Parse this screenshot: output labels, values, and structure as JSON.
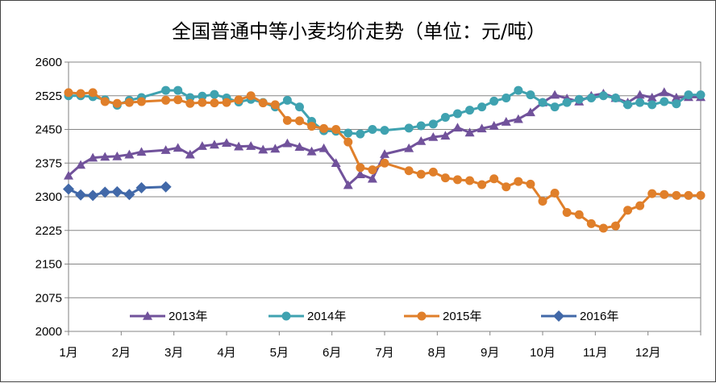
{
  "chart_data": {
    "type": "line",
    "title": "全国普通中等小麦均价走势（单位：元/吨）",
    "ylim": [
      2000,
      2600
    ],
    "y_ticks": [
      2000,
      2075,
      2150,
      2225,
      2300,
      2375,
      2450,
      2525,
      2600
    ],
    "x_ticks": [
      "1月",
      "2月",
      "3月",
      "4月",
      "5月",
      "6月",
      "7月",
      "8月",
      "9月",
      "10月",
      "11月",
      "12月"
    ],
    "x_unit": "week index (1月 tick = 0, 52 weeks per year)",
    "xlim": [
      0,
      52.5
    ],
    "grid": true,
    "legend_position": "inside-bottom",
    "series": [
      {
        "name": "2013年",
        "color": "#71529B",
        "marker": "triangle",
        "x": [
          0,
          1,
          2,
          3,
          4,
          5,
          6,
          8,
          9,
          10,
          11,
          12,
          13,
          14,
          15,
          16,
          17,
          18,
          19,
          20,
          21,
          22,
          23,
          24,
          25,
          26,
          28,
          29,
          30,
          31,
          32,
          33,
          34,
          35,
          36,
          37,
          38,
          39,
          40,
          41,
          42,
          43,
          44,
          45,
          46,
          47,
          48,
          49,
          50,
          51,
          52
        ],
        "values": [
          2347,
          2371,
          2387,
          2389,
          2390,
          2394,
          2400,
          2404,
          2409,
          2394,
          2413,
          2416,
          2420,
          2412,
          2413,
          2405,
          2407,
          2419,
          2411,
          2401,
          2408,
          2375,
          2326,
          2350,
          2340,
          2395,
          2408,
          2424,
          2433,
          2436,
          2454,
          2443,
          2452,
          2458,
          2467,
          2473,
          2488,
          2510,
          2527,
          2519,
          2512,
          2525,
          2530,
          2520,
          2510,
          2527,
          2521,
          2533,
          2521,
          2522,
          2522
        ]
      },
      {
        "name": "2014年",
        "color": "#3FA2B0",
        "marker": "circle",
        "x": [
          0,
          1,
          2,
          3,
          4,
          5,
          6,
          8,
          9,
          10,
          11,
          12,
          13,
          14,
          15,
          16,
          17,
          18,
          19,
          20,
          21,
          22,
          23,
          24,
          25,
          26,
          28,
          29,
          30,
          31,
          32,
          33,
          34,
          35,
          36,
          37,
          38,
          39,
          40,
          41,
          42,
          43,
          44,
          45,
          46,
          47,
          48,
          49,
          50,
          51,
          52
        ],
        "values": [
          2525,
          2525,
          2523,
          2516,
          2504,
          2515,
          2521,
          2537,
          2537,
          2521,
          2524,
          2528,
          2520,
          2511,
          2517,
          2510,
          2500,
          2515,
          2500,
          2468,
          2447,
          2446,
          2442,
          2440,
          2450,
          2448,
          2453,
          2458,
          2462,
          2477,
          2485,
          2493,
          2500,
          2513,
          2520,
          2537,
          2527,
          2510,
          2500,
          2510,
          2517,
          2520,
          2525,
          2520,
          2505,
          2510,
          2505,
          2512,
          2507,
          2527,
          2527
        ]
      },
      {
        "name": "2015年",
        "color": "#E07F2A",
        "marker": "circle",
        "x": [
          0,
          1,
          2,
          3,
          4,
          5,
          6,
          8,
          9,
          10,
          11,
          12,
          13,
          14,
          15,
          16,
          17,
          18,
          19,
          20,
          21,
          22,
          23,
          24,
          25,
          26,
          28,
          29,
          30,
          31,
          32,
          33,
          34,
          35,
          36,
          37,
          38,
          39,
          40,
          41,
          42,
          43,
          44,
          45,
          46,
          47,
          48,
          49,
          50,
          51,
          52
        ],
        "values": [
          2532,
          2530,
          2532,
          2512,
          2508,
          2510,
          2512,
          2515,
          2516,
          2508,
          2510,
          2509,
          2510,
          2516,
          2525,
          2509,
          2505,
          2470,
          2469,
          2457,
          2452,
          2450,
          2422,
          2365,
          2360,
          2375,
          2358,
          2350,
          2355,
          2342,
          2338,
          2336,
          2327,
          2340,
          2322,
          2334,
          2328,
          2290,
          2308,
          2265,
          2260,
          2240,
          2230,
          2235,
          2270,
          2280,
          2307,
          2305,
          2303,
          2303,
          2303
        ]
      },
      {
        "name": "2016年",
        "color": "#4168A8",
        "marker": "diamond",
        "x": [
          0,
          1,
          2,
          3,
          4,
          5,
          6,
          8
        ],
        "values": [
          2317,
          2304,
          2303,
          2310,
          2311,
          2305,
          2320,
          2322
        ]
      }
    ]
  }
}
